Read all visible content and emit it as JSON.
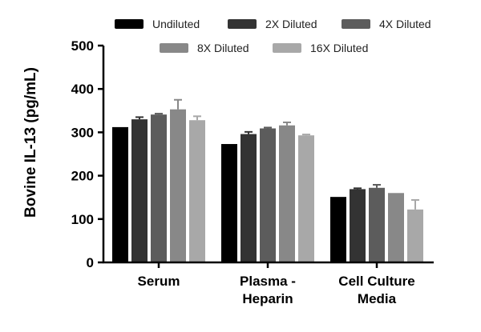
{
  "chart_data": {
    "type": "bar",
    "title": "",
    "xlabel": "",
    "ylabel": "Bovine IL-13 (pg/mL)",
    "ylim": [
      0,
      500
    ],
    "yticks": [
      0,
      100,
      200,
      300,
      400,
      500
    ],
    "categories": [
      {
        "lines": [
          "Serum"
        ]
      },
      {
        "lines": [
          "Plasma -",
          "Heparin"
        ]
      },
      {
        "lines": [
          "Cell Culture",
          "Media"
        ]
      }
    ],
    "series": [
      {
        "name": "Undiluted",
        "color": "#000000",
        "values": [
          312,
          273,
          151
        ],
        "errors": [
          0,
          0,
          0
        ]
      },
      {
        "name": "2X Diluted",
        "color": "#333333",
        "values": [
          330,
          296,
          169
        ],
        "errors": [
          5,
          5,
          2
        ]
      },
      {
        "name": "4X Diluted",
        "color": "#5c5c5c",
        "values": [
          341,
          309,
          172
        ],
        "errors": [
          2,
          2,
          7
        ]
      },
      {
        "name": "8X Diluted",
        "color": "#888888",
        "values": [
          353,
          316,
          160
        ],
        "errors": [
          22,
          7,
          0
        ]
      },
      {
        "name": "16X Diluted",
        "color": "#a8a8a8",
        "values": [
          328,
          293,
          122
        ],
        "errors": [
          9,
          2,
          22
        ]
      }
    ],
    "legend": {
      "position": "top",
      "rows": [
        [
          0,
          1,
          2
        ],
        [
          3,
          4
        ]
      ]
    }
  }
}
